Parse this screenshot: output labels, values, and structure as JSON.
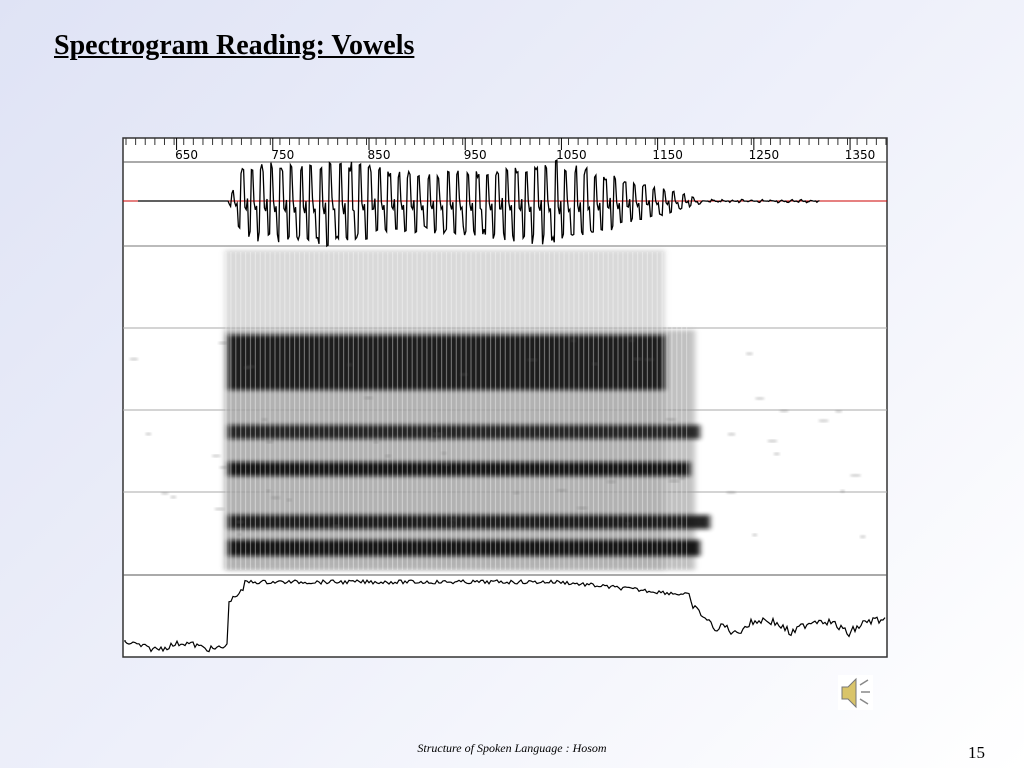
{
  "title": "Spectrogram Reading: Vowels",
  "figure": {
    "ruler": {
      "range": [
        586,
        1378
      ],
      "ticks": [
        650,
        750,
        850,
        950,
        1050,
        1150,
        1250,
        1350
      ]
    }
  },
  "footer": {
    "text": "Structure of Spoken Language : Hosom",
    "page_number": 15
  }
}
